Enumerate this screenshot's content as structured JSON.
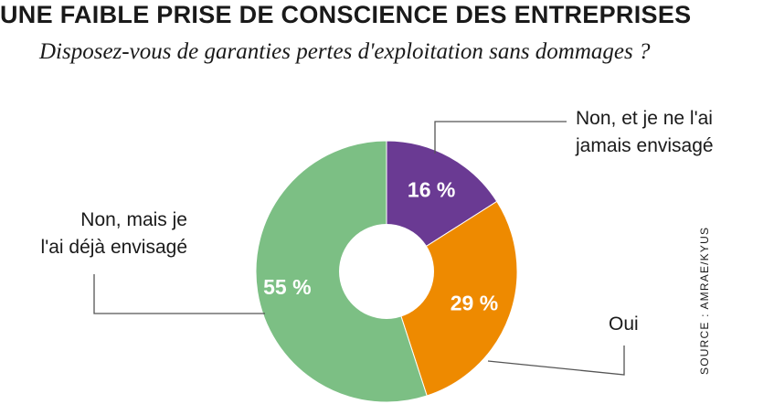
{
  "header": {
    "title": "UNE FAIBLE PRISE DE CONSCIENCE DES ENTREPRISES",
    "subtitle": "Disposez-vous de garanties pertes d'exploitation sans dommages ?"
  },
  "source": "SOURCE : AMRAE/KYUS",
  "chart_data": {
    "type": "pie",
    "donut": true,
    "title": "UNE FAIBLE PRISE DE CONSCIENCE DES ENTREPRISES",
    "subtitle": "Disposez-vous de garanties pertes d'exploitation sans dommages ?",
    "slices": [
      {
        "label_lines": [
          "Non, et je ne l'ai",
          "jamais envisagé"
        ],
        "value": 16,
        "value_label": "16 %",
        "color": "#6a3a93"
      },
      {
        "label_lines": [
          "Oui"
        ],
        "value": 29,
        "value_label": "29 %",
        "color": "#ee8a00"
      },
      {
        "label_lines": [
          "Non, mais je",
          "l'ai déjà envisagé"
        ],
        "value": 55,
        "value_label": "55 %",
        "color": "#7cbf84"
      }
    ]
  }
}
